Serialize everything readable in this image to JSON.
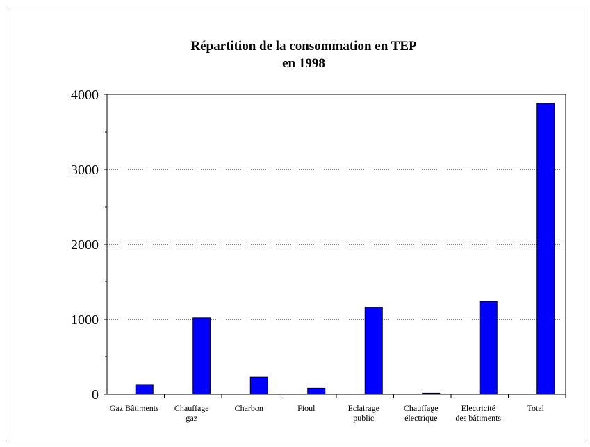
{
  "chart_data": {
    "type": "bar",
    "title": "Répartition de la consommation en TEP\nen 1998",
    "categories": [
      "Gaz Bâtiments",
      "Chauffage\ngaz",
      "Charbon",
      "Fioul",
      "Eclairage\npublic",
      "Chauffage\nélectrique",
      "Electricité\ndes bâtiments",
      "Total"
    ],
    "values": [
      130,
      1020,
      230,
      80,
      1160,
      15,
      1240,
      3880
    ],
    "color": "#0000ff",
    "ylim": [
      0,
      4000
    ],
    "yticks": [
      0,
      1000,
      2000,
      3000,
      4000
    ],
    "grid": true
  }
}
